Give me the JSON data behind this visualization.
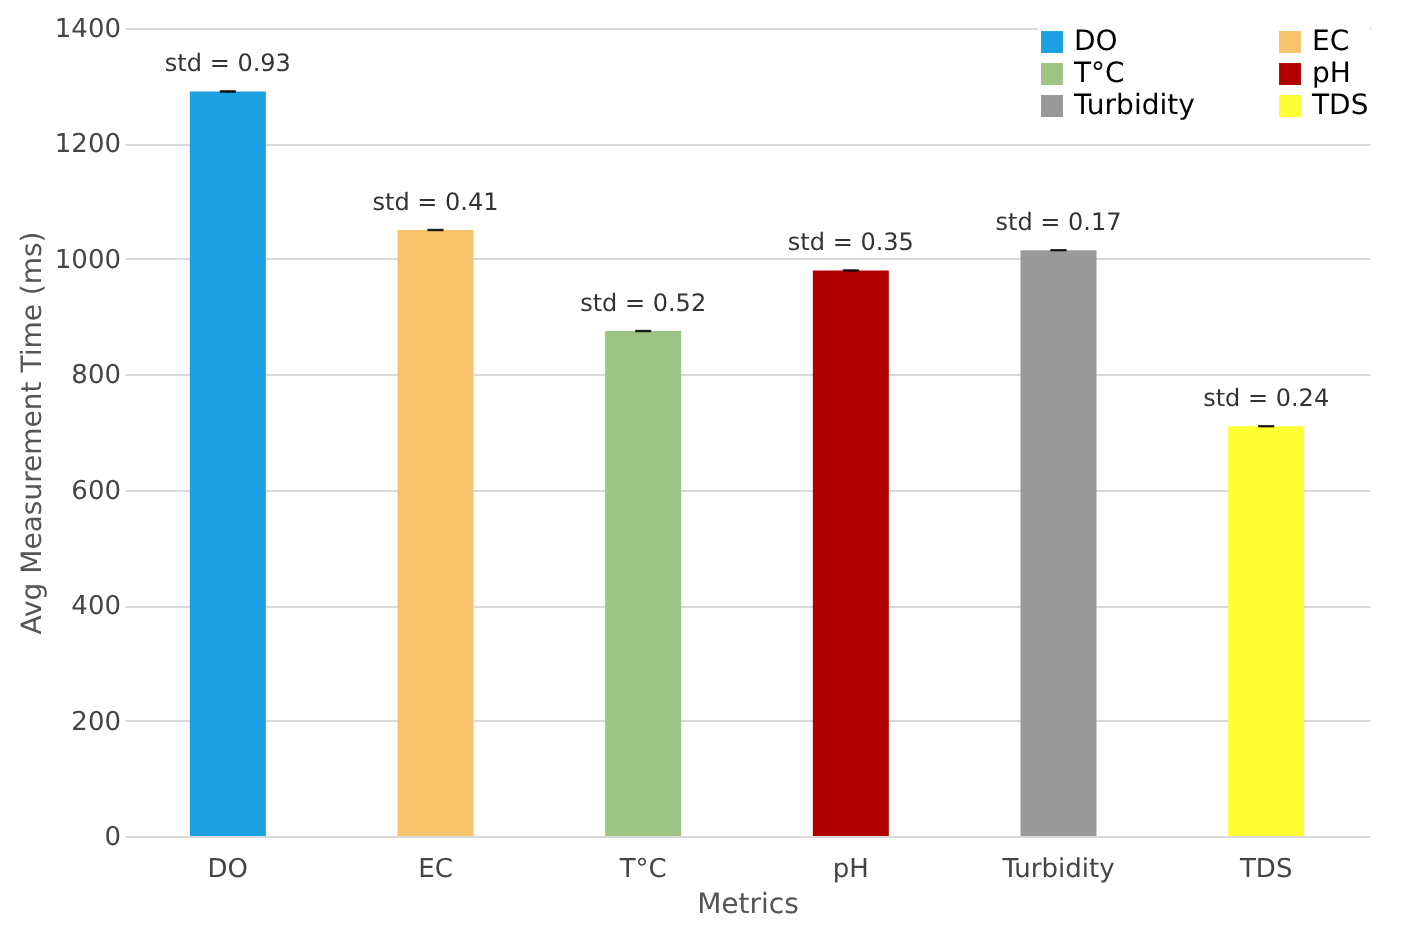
{
  "chart_data": {
    "type": "bar",
    "xlabel": "Metrics",
    "ylabel": "Avg Measurement Time (ms)",
    "categories": [
      "DO",
      "EC",
      "T°C",
      "pH",
      "Turbidity",
      "TDS"
    ],
    "series": [
      {
        "name": "DO",
        "color": "#1ba1e2",
        "values": [
          1290,
          null,
          null,
          null,
          null,
          null
        ],
        "errors": [
          0.93,
          null,
          null,
          null,
          null,
          null
        ]
      },
      {
        "name": "EC",
        "color": "#f7c46c",
        "values": [
          null,
          1050,
          null,
          null,
          null,
          null
        ],
        "errors": [
          null,
          0.41,
          null,
          null,
          null,
          null
        ]
      },
      {
        "name": "T°C",
        "color": "#9cc483",
        "values": [
          null,
          null,
          875,
          null,
          null,
          null
        ],
        "errors": [
          null,
          null,
          0.52,
          null,
          null,
          null
        ]
      },
      {
        "name": "pH",
        "color": "#b00000",
        "values": [
          null,
          null,
          null,
          980,
          null,
          null
        ],
        "errors": [
          null,
          null,
          null,
          0.35,
          null,
          null
        ]
      },
      {
        "name": "Turbidity",
        "color": "#999999",
        "values": [
          null,
          null,
          null,
          null,
          1015,
          null
        ],
        "errors": [
          null,
          null,
          null,
          null,
          0.17,
          null
        ]
      },
      {
        "name": "TDS",
        "color": "#ffff33",
        "values": [
          null,
          null,
          null,
          null,
          null,
          710
        ],
        "errors": [
          null,
          null,
          null,
          null,
          null,
          0.24
        ]
      }
    ],
    "annotations": [
      {
        "text": "std = 0.93",
        "x": "DO",
        "y": 1290
      },
      {
        "text": "std = 0.41",
        "x": "EC",
        "y": 1050
      },
      {
        "text": "std = 0.52",
        "x": "T°C",
        "y": 875
      },
      {
        "text": "std = 0.35",
        "x": "pH",
        "y": 980
      },
      {
        "text": "std = 0.17",
        "x": "Turbidity",
        "y": 1015
      },
      {
        "text": "std = 0.24",
        "x": "TDS",
        "y": 710
      }
    ],
    "ylim": [
      0,
      1400
    ],
    "yticks": [
      0,
      200,
      400,
      600,
      800,
      1000,
      1200,
      1400
    ],
    "grid": "y",
    "legend": "top right"
  }
}
